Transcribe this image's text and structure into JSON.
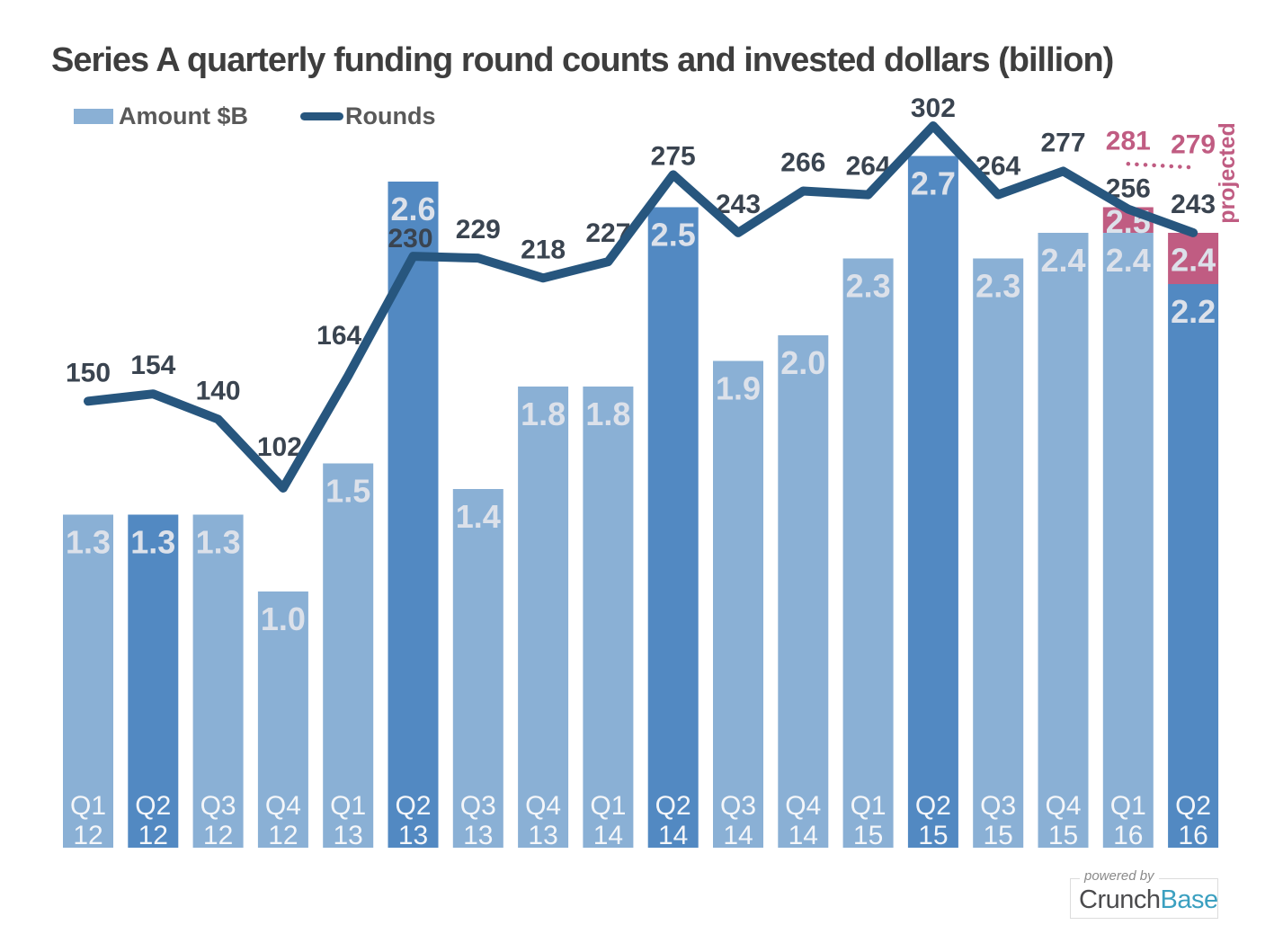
{
  "chart_data": {
    "type": "bar+line",
    "title": "Series A quarterly funding round counts and invested dollars (billion)",
    "legend": [
      {
        "label": "Amount $B",
        "marker": "bar-swatch"
      },
      {
        "label": "Rounds",
        "marker": "line-swatch"
      }
    ],
    "legend_position": "top-left",
    "categories": [
      "Q1 12",
      "Q2 12",
      "Q3 12",
      "Q4 12",
      "Q1 13",
      "Q2 13",
      "Q3 13",
      "Q4 13",
      "Q1 14",
      "Q2 14",
      "Q3 14",
      "Q4 14",
      "Q1 15",
      "Q2 15",
      "Q3 15",
      "Q4 15",
      "Q1 16",
      "Q2 16"
    ],
    "series": [
      {
        "name": "Amount $B",
        "type": "bar",
        "values": [
          1.3,
          1.3,
          1.3,
          1.0,
          1.5,
          2.6,
          1.4,
          1.8,
          1.8,
          2.5,
          1.9,
          2.0,
          2.3,
          2.7,
          2.3,
          2.4,
          2.4,
          2.2
        ]
      },
      {
        "name": "Rounds",
        "type": "line",
        "values": [
          150,
          154,
          140,
          102,
          164,
          230,
          229,
          218,
          227,
          275,
          243,
          266,
          264,
          302,
          264,
          277,
          256,
          243
        ]
      },
      {
        "name": "Amount $B projected",
        "type": "bar-cap",
        "values": [
          null,
          null,
          null,
          null,
          null,
          null,
          null,
          null,
          null,
          null,
          null,
          null,
          null,
          null,
          null,
          null,
          2.5,
          2.4
        ]
      },
      {
        "name": "Rounds projected",
        "type": "dotted-line",
        "values": [
          null,
          null,
          null,
          null,
          null,
          null,
          null,
          null,
          null,
          null,
          null,
          null,
          null,
          null,
          null,
          null,
          281,
          279
        ]
      }
    ],
    "highlighted_categories": [
      "Q2 12",
      "Q2 13",
      "Q2 14",
      "Q2 15",
      "Q2 16"
    ],
    "annotations": {
      "projected": "projected"
    },
    "axes": {
      "y_axis": "hidden",
      "grid": false,
      "x_labels_inside_bars": true
    },
    "colors": {
      "light_bar": "#8AB0D5",
      "dark_bar": "#5289C2",
      "line": "#27567E",
      "projected_pink": "#C05C82",
      "bar_value_label": "#DCE1EA",
      "x_tick_label": "#F4F6F9",
      "rounds_label": "#3A4450",
      "title": "#3E3E3E",
      "legend_text": "#595959",
      "powered_by_gray": "#8A8A8A",
      "brand_dark": "#4B4B4D",
      "brand_teal": "#3BA0C0"
    }
  },
  "logo": {
    "powered_by": "powered by",
    "brand_prefix": "Crunch",
    "brand_suffix": "Base"
  }
}
